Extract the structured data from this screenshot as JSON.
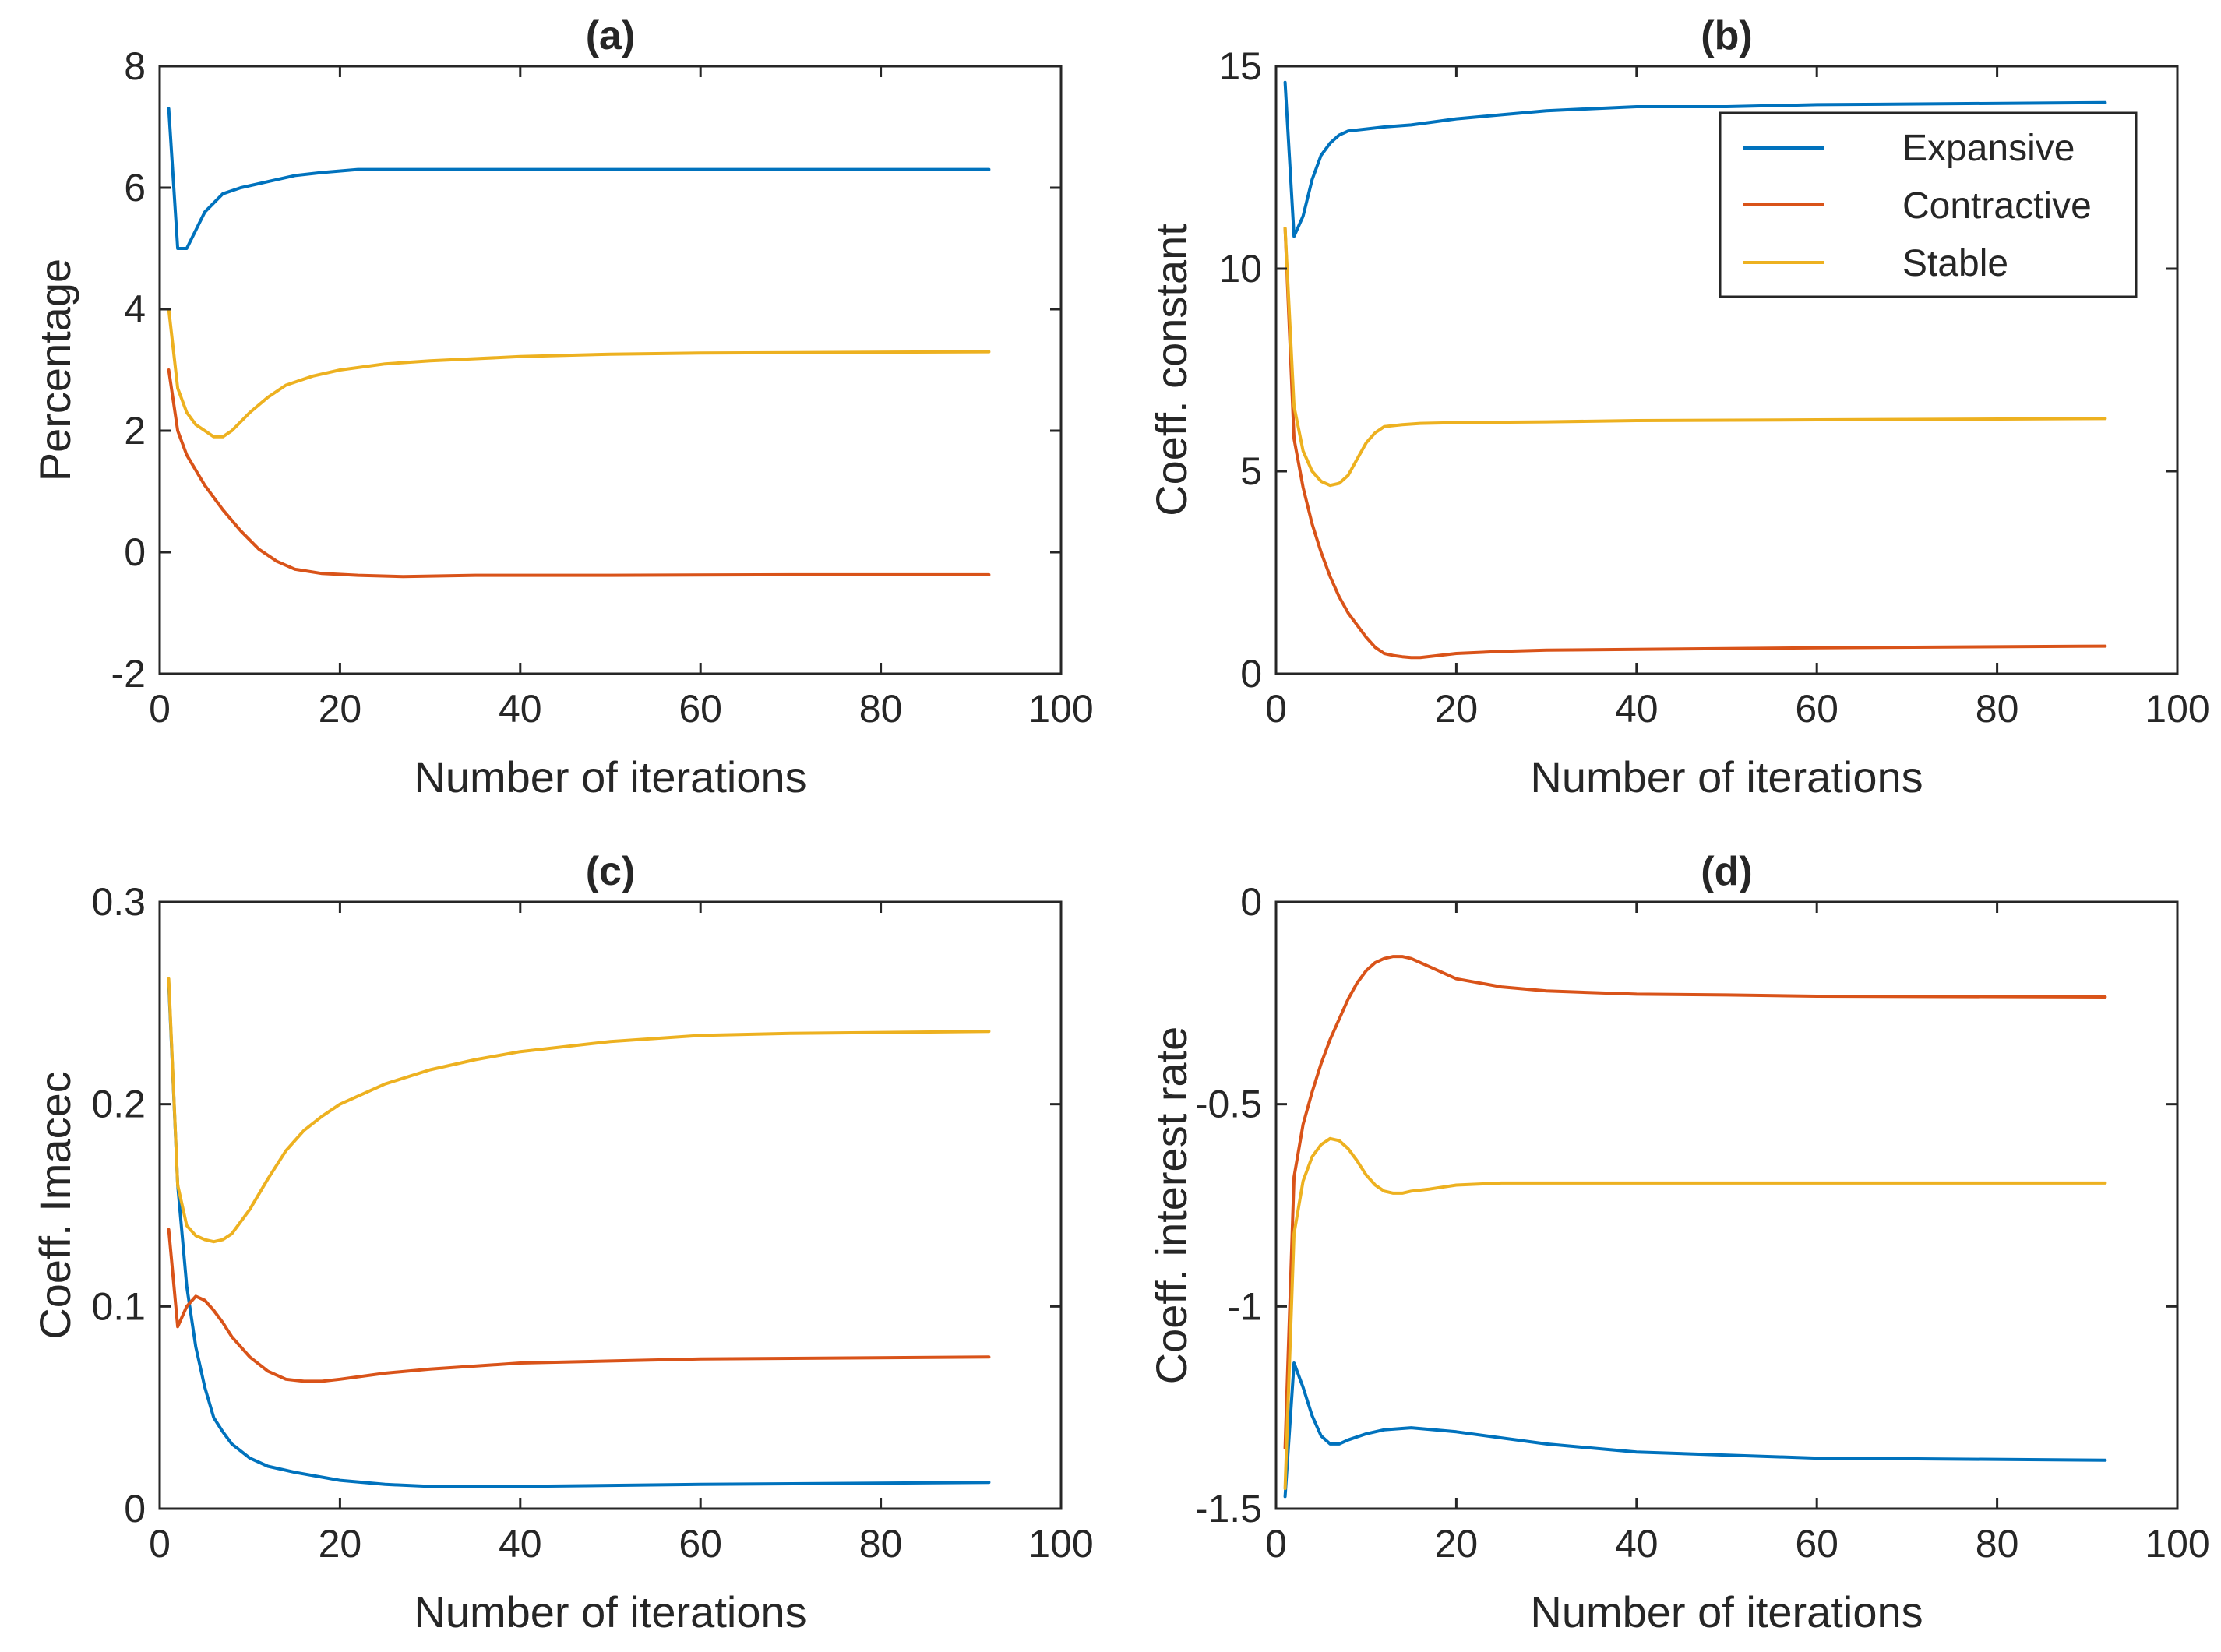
{
  "figure": {
    "title": "4-panel chart of coefficient convergence vs number of iterations"
  },
  "legend": {
    "entries": [
      "Expansive",
      "Contractive",
      "Stable"
    ],
    "placement": "top-right of panel (b)"
  },
  "colors": {
    "Expansive": "#0072BD",
    "Contractive": "#D95319",
    "Stable": "#EDB120",
    "axis": "#262626"
  },
  "chart_data": [
    {
      "id": "a",
      "type": "line",
      "title": "(a)",
      "xlabel": "Number of iterations",
      "ylabel": "Percentage",
      "xlim": [
        0,
        100
      ],
      "ylim": [
        -2,
        8
      ],
      "xticks": [
        0,
        20,
        40,
        60,
        80,
        100
      ],
      "yticks": [
        -2,
        0,
        2,
        4,
        6,
        8
      ],
      "xtick_labels": [
        "0",
        "20",
        "40",
        "60",
        "80",
        "100"
      ],
      "ytick_labels": [
        "-2",
        "0",
        "2",
        "4",
        "6",
        "8"
      ],
      "series": [
        {
          "name": "Expansive",
          "x": [
            1,
            2,
            3,
            4,
            5,
            7,
            9,
            12,
            15,
            18,
            22,
            30,
            40,
            60,
            92
          ],
          "y": [
            7.3,
            5.0,
            5.0,
            5.3,
            5.6,
            5.9,
            6.0,
            6.1,
            6.2,
            6.25,
            6.3,
            6.3,
            6.3,
            6.3,
            6.3
          ]
        },
        {
          "name": "Contractive",
          "x": [
            1,
            2,
            3,
            5,
            7,
            9,
            11,
            13,
            15,
            18,
            22,
            27,
            35,
            50,
            70,
            92
          ],
          "y": [
            3.0,
            2.0,
            1.6,
            1.1,
            0.7,
            0.35,
            0.05,
            -0.15,
            -0.28,
            -0.35,
            -0.38,
            -0.4,
            -0.38,
            -0.38,
            -0.37,
            -0.37
          ]
        },
        {
          "name": "Stable",
          "x": [
            1,
            2,
            3,
            4,
            5,
            6,
            7,
            8,
            10,
            12,
            14,
            17,
            20,
            25,
            30,
            40,
            50,
            60,
            92
          ],
          "y": [
            4.0,
            2.7,
            2.3,
            2.1,
            2.0,
            1.9,
            1.9,
            2.0,
            2.3,
            2.55,
            2.75,
            2.9,
            3.0,
            3.1,
            3.15,
            3.22,
            3.26,
            3.28,
            3.3
          ]
        }
      ]
    },
    {
      "id": "b",
      "type": "line",
      "title": "(b)",
      "xlabel": "Number of iterations",
      "ylabel": "Coeff. constant",
      "xlim": [
        0,
        100
      ],
      "ylim": [
        0,
        15
      ],
      "xticks": [
        0,
        20,
        40,
        60,
        80,
        100
      ],
      "yticks": [
        0,
        5,
        10,
        15
      ],
      "xtick_labels": [
        "0",
        "20",
        "40",
        "60",
        "80",
        "100"
      ],
      "ytick_labels": [
        "0",
        "5",
        "10",
        "15"
      ],
      "series": [
        {
          "name": "Expansive",
          "x": [
            1,
            2,
            3,
            4,
            5,
            6,
            7,
            8,
            10,
            12,
            15,
            20,
            25,
            30,
            40,
            50,
            60,
            92
          ],
          "y": [
            14.6,
            10.8,
            11.3,
            12.2,
            12.8,
            13.1,
            13.3,
            13.4,
            13.45,
            13.5,
            13.55,
            13.7,
            13.8,
            13.9,
            14.0,
            14.0,
            14.05,
            14.1
          ]
        },
        {
          "name": "Contractive",
          "x": [
            1,
            2,
            3,
            4,
            5,
            6,
            7,
            8,
            9,
            10,
            11,
            12,
            13,
            14,
            15,
            16,
            18,
            20,
            25,
            30,
            40,
            50,
            60,
            92
          ],
          "y": [
            11.0,
            5.8,
            4.6,
            3.7,
            3.0,
            2.4,
            1.9,
            1.5,
            1.2,
            0.9,
            0.65,
            0.5,
            0.45,
            0.42,
            0.4,
            0.4,
            0.45,
            0.5,
            0.55,
            0.58,
            0.6,
            0.62,
            0.64,
            0.68
          ]
        },
        {
          "name": "Stable",
          "x": [
            1,
            2,
            3,
            4,
            5,
            6,
            7,
            8,
            9,
            10,
            11,
            12,
            14,
            16,
            20,
            30,
            40,
            60,
            92
          ],
          "y": [
            11.0,
            6.6,
            5.5,
            5.0,
            4.75,
            4.65,
            4.7,
            4.9,
            5.3,
            5.7,
            5.95,
            6.1,
            6.15,
            6.18,
            6.2,
            6.22,
            6.25,
            6.27,
            6.3
          ]
        }
      ]
    },
    {
      "id": "c",
      "type": "line",
      "title": "(c)",
      "xlabel": "Number of iterations",
      "ylabel": "Coeff. Imacec",
      "xlim": [
        0,
        100
      ],
      "ylim": [
        0,
        0.3
      ],
      "xticks": [
        0,
        20,
        40,
        60,
        80,
        100
      ],
      "yticks": [
        0,
        0.1,
        0.2,
        0.3
      ],
      "xtick_labels": [
        "0",
        "20",
        "40",
        "60",
        "80",
        "100"
      ],
      "ytick_labels": [
        "0",
        "0.1",
        "0.2",
        "0.3"
      ],
      "series": [
        {
          "name": "Expansive",
          "x": [
            1,
            2,
            3,
            4,
            5,
            6,
            7,
            8,
            10,
            12,
            15,
            20,
            25,
            30,
            40,
            60,
            92
          ],
          "y": [
            0.26,
            0.16,
            0.11,
            0.08,
            0.06,
            0.045,
            0.038,
            0.032,
            0.025,
            0.021,
            0.018,
            0.014,
            0.012,
            0.011,
            0.011,
            0.012,
            0.013
          ]
        },
        {
          "name": "Contractive",
          "x": [
            1,
            2,
            3,
            4,
            5,
            6,
            7,
            8,
            10,
            12,
            14,
            16,
            18,
            20,
            25,
            30,
            40,
            50,
            60,
            92
          ],
          "y": [
            0.138,
            0.09,
            0.1,
            0.105,
            0.103,
            0.098,
            0.092,
            0.085,
            0.075,
            0.068,
            0.064,
            0.063,
            0.063,
            0.064,
            0.067,
            0.069,
            0.072,
            0.073,
            0.074,
            0.075
          ]
        },
        {
          "name": "Stable",
          "x": [
            1,
            2,
            3,
            4,
            5,
            6,
            7,
            8,
            10,
            12,
            14,
            16,
            18,
            20,
            25,
            30,
            35,
            40,
            50,
            60,
            70,
            92
          ],
          "y": [
            0.262,
            0.16,
            0.14,
            0.135,
            0.133,
            0.132,
            0.133,
            0.136,
            0.148,
            0.163,
            0.177,
            0.187,
            0.194,
            0.2,
            0.21,
            0.217,
            0.222,
            0.226,
            0.231,
            0.234,
            0.235,
            0.236
          ]
        }
      ]
    },
    {
      "id": "d",
      "type": "line",
      "title": "(d)",
      "xlabel": "Number of iterations",
      "ylabel": "Coeff. interest rate",
      "xlim": [
        0,
        100
      ],
      "ylim": [
        -1.5,
        0
      ],
      "xticks": [
        0,
        20,
        40,
        60,
        80,
        100
      ],
      "yticks": [
        -1.5,
        -1,
        -0.5,
        0
      ],
      "xtick_labels": [
        "0",
        "20",
        "40",
        "60",
        "80",
        "100"
      ],
      "ytick_labels": [
        "-1.5",
        "-1",
        "-0.5",
        "0"
      ],
      "series": [
        {
          "name": "Expansive",
          "x": [
            1,
            2,
            3,
            4,
            5,
            6,
            7,
            8,
            10,
            12,
            15,
            20,
            30,
            40,
            60,
            92
          ],
          "y": [
            -1.47,
            -1.14,
            -1.2,
            -1.27,
            -1.32,
            -1.34,
            -1.34,
            -1.33,
            -1.315,
            -1.305,
            -1.3,
            -1.31,
            -1.34,
            -1.36,
            -1.375,
            -1.38
          ]
        },
        {
          "name": "Contractive",
          "x": [
            1,
            2,
            3,
            4,
            5,
            6,
            7,
            8,
            9,
            10,
            11,
            12,
            13,
            14,
            15,
            17,
            20,
            25,
            30,
            40,
            50,
            60,
            92
          ],
          "y": [
            -1.35,
            -0.68,
            -0.55,
            -0.47,
            -0.4,
            -0.34,
            -0.29,
            -0.24,
            -0.2,
            -0.17,
            -0.15,
            -0.14,
            -0.135,
            -0.135,
            -0.14,
            -0.16,
            -0.19,
            -0.21,
            -0.22,
            -0.228,
            -0.23,
            -0.233,
            -0.235
          ]
        },
        {
          "name": "Stable",
          "x": [
            1,
            2,
            3,
            4,
            5,
            6,
            7,
            8,
            9,
            10,
            11,
            12,
            13,
            14,
            15,
            17,
            20,
            25,
            30,
            40,
            60,
            92
          ],
          "y": [
            -1.45,
            -0.82,
            -0.69,
            -0.63,
            -0.6,
            -0.585,
            -0.59,
            -0.61,
            -0.64,
            -0.675,
            -0.7,
            -0.715,
            -0.72,
            -0.72,
            -0.715,
            -0.71,
            -0.7,
            -0.695,
            -0.695,
            -0.695,
            -0.695,
            -0.695
          ]
        }
      ]
    }
  ]
}
